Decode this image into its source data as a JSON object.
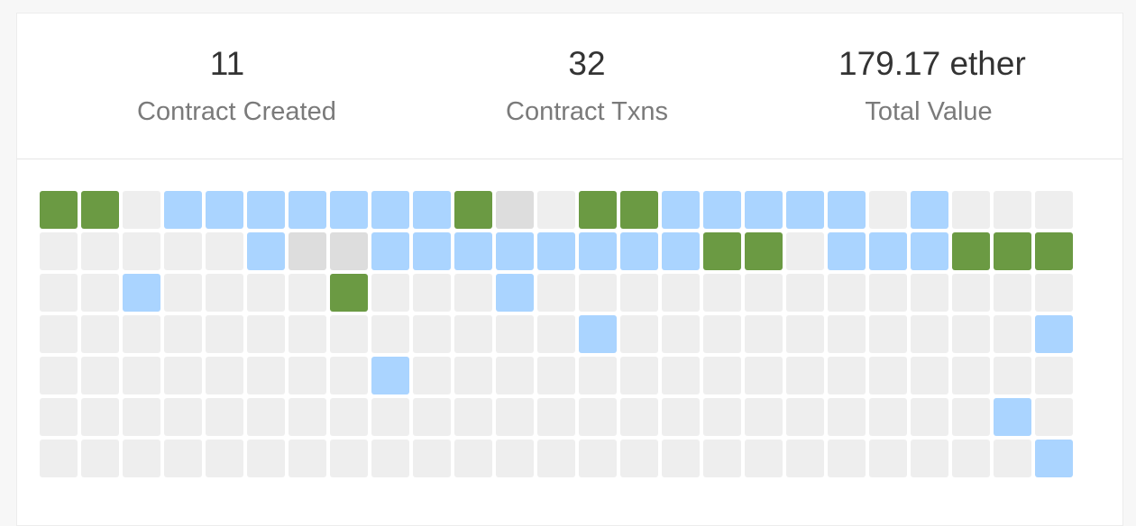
{
  "stats": [
    {
      "value": "11",
      "label": "Contract Created"
    },
    {
      "value": "32",
      "label": "Contract Txns"
    },
    {
      "value": "179.17 ether",
      "label": "Total Value"
    }
  ],
  "grid": {
    "legend_codes": {
      "0": "empty",
      "1": "txn",
      "2": "contract-created",
      "3": "light-gray"
    },
    "colors": {
      "empty": "#eeeeee",
      "txn": "#aad4ff",
      "contract-created": "#6b9a43",
      "light-gray": "#dddddd"
    },
    "rows": [
      [
        2,
        2,
        0,
        1,
        1,
        1,
        1,
        1,
        1,
        1,
        2,
        3,
        0,
        2,
        2,
        1,
        1,
        1,
        1,
        1,
        0,
        1,
        0,
        0,
        0
      ],
      [
        0,
        0,
        0,
        0,
        0,
        1,
        3,
        3,
        1,
        1,
        1,
        1,
        1,
        1,
        1,
        1,
        2,
        2,
        0,
        1,
        1,
        1,
        2,
        2,
        2
      ],
      [
        0,
        0,
        1,
        0,
        0,
        0,
        0,
        2,
        0,
        0,
        0,
        1,
        0,
        0,
        0,
        0,
        0,
        0,
        0,
        0,
        0,
        0,
        0,
        0,
        0
      ],
      [
        0,
        0,
        0,
        0,
        0,
        0,
        0,
        0,
        0,
        0,
        0,
        0,
        0,
        1,
        0,
        0,
        0,
        0,
        0,
        0,
        0,
        0,
        0,
        0,
        1
      ],
      [
        0,
        0,
        0,
        0,
        0,
        0,
        0,
        0,
        1,
        0,
        0,
        0,
        0,
        0,
        0,
        0,
        0,
        0,
        0,
        0,
        0,
        0,
        0,
        0,
        0
      ],
      [
        0,
        0,
        0,
        0,
        0,
        0,
        0,
        0,
        0,
        0,
        0,
        0,
        0,
        0,
        0,
        0,
        0,
        0,
        0,
        0,
        0,
        0,
        0,
        1,
        0
      ],
      [
        0,
        0,
        0,
        0,
        0,
        0,
        0,
        0,
        0,
        0,
        0,
        0,
        0,
        0,
        0,
        0,
        0,
        0,
        0,
        0,
        0,
        0,
        0,
        0,
        1
      ]
    ]
  }
}
